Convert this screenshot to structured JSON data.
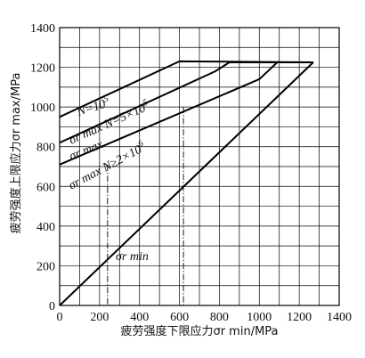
{
  "chart_data": {
    "type": "line",
    "xlabel": "疲劳强度下限应力σr min/MPa",
    "ylabel": "疲劳强度上限应力σr max/MPa",
    "xlim": [
      0,
      1400
    ],
    "ylim": [
      0,
      1400
    ],
    "xticks": [
      "0",
      "200",
      "400",
      "600",
      "800",
      "1000",
      "1200",
      "1400"
    ],
    "yticks": [
      "0",
      "200",
      "400",
      "600",
      "800",
      "1000",
      "1200",
      "1400"
    ],
    "grid": true,
    "legend": "none",
    "series": [
      {
        "name": "σr max N=10^5",
        "x": [
          0,
          600,
          1270
        ],
        "y": [
          950,
          1230,
          1225
        ]
      },
      {
        "name": "σr max N=5×10^5",
        "x": [
          0,
          780,
          850,
          1270
        ],
        "y": [
          820,
          1180,
          1225,
          1225
        ]
      },
      {
        "name": "σr max N≥2×10^6",
        "x": [
          0,
          1000,
          1090,
          1270
        ],
        "y": [
          710,
          1140,
          1225,
          1225
        ]
      },
      {
        "name": "σr min",
        "x": [
          0,
          1270
        ],
        "y": [
          0,
          1225
        ]
      }
    ],
    "dashed_verticals": [
      {
        "x": 240,
        "y_top": 710
      },
      {
        "x": 620,
        "y_top": 1000
      }
    ],
    "annotations": {
      "n1": "N=10",
      "n1_exp": "5",
      "smax1": "σr max",
      "n2": "N=5×10",
      "n2_exp": "5",
      "smax2": "σr max",
      "n3": "N≥2×10",
      "n3_exp": "6",
      "smin": "σr min"
    }
  }
}
